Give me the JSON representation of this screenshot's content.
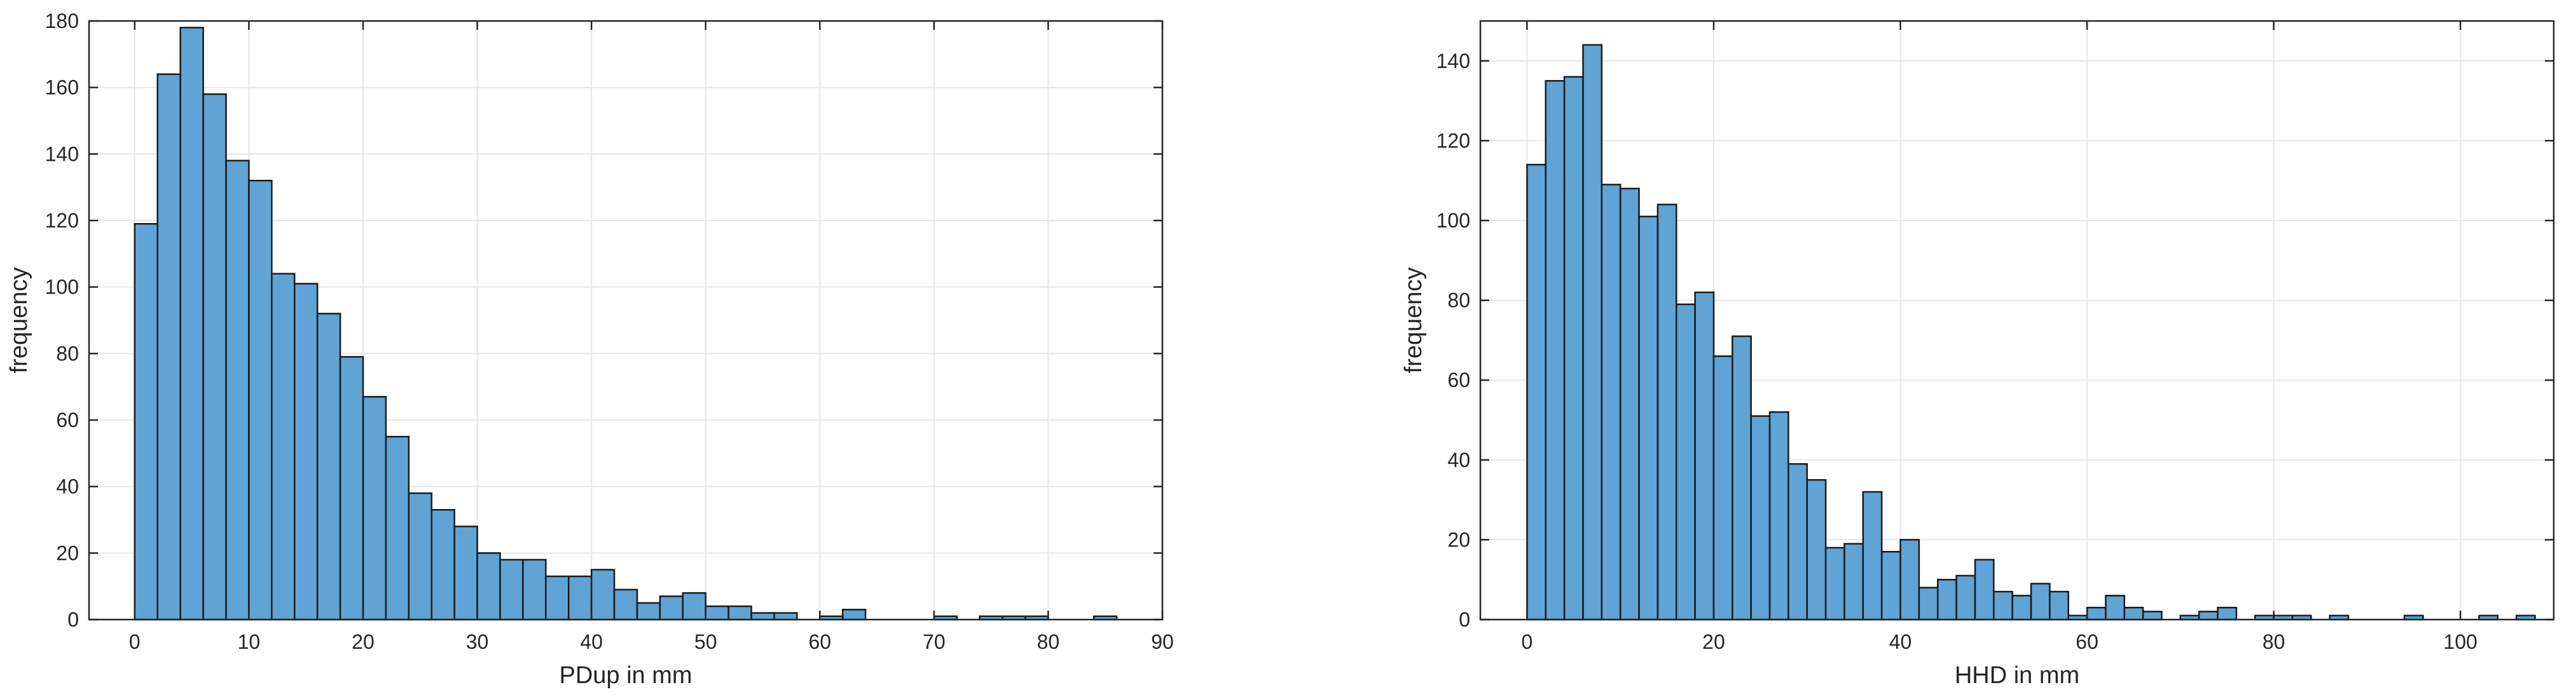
{
  "chart_data": [
    {
      "type": "bar",
      "xlabel": "PDup in mm",
      "ylabel": "frequency",
      "xlim": [
        -4,
        90
      ],
      "ylim": [
        0,
        180
      ],
      "xticks": [
        0,
        10,
        20,
        30,
        40,
        50,
        60,
        70,
        80,
        90
      ],
      "yticks": [
        0,
        20,
        40,
        60,
        80,
        100,
        120,
        140,
        160,
        180
      ],
      "grid": true,
      "bar_color": "#5fa4d4",
      "edge_color": "#1a1a1a",
      "bin_edges": [
        0,
        2,
        4,
        6,
        8,
        10,
        12,
        14,
        16,
        18,
        20,
        22,
        24,
        26,
        28,
        30,
        32,
        34,
        36,
        38,
        40,
        42,
        44,
        46,
        48,
        50,
        52,
        54,
        56,
        58,
        60,
        62,
        64,
        66,
        68,
        70,
        72,
        74,
        76,
        78,
        80,
        82,
        84,
        86
      ],
      "values": [
        119,
        164,
        178,
        158,
        138,
        132,
        104,
        101,
        92,
        79,
        67,
        55,
        38,
        33,
        28,
        20,
        18,
        18,
        13,
        13,
        15,
        9,
        5,
        7,
        8,
        4,
        4,
        2,
        2,
        0,
        1,
        3,
        0,
        0,
        0,
        1,
        0,
        1,
        1,
        1,
        0,
        0,
        1
      ]
    },
    {
      "type": "bar",
      "xlabel": "HHD in mm",
      "ylabel": "frequency",
      "xlim": [
        -5,
        110
      ],
      "ylim": [
        0,
        150
      ],
      "xticks": [
        0,
        20,
        40,
        60,
        80,
        100
      ],
      "yticks": [
        0,
        20,
        40,
        60,
        80,
        100,
        120,
        140
      ],
      "grid": true,
      "bar_color": "#5fa4d4",
      "edge_color": "#1a1a1a",
      "bin_edges": [
        0,
        2,
        4,
        6,
        8,
        10,
        12,
        14,
        16,
        18,
        20,
        22,
        24,
        26,
        28,
        30,
        32,
        34,
        36,
        38,
        40,
        42,
        44,
        46,
        48,
        50,
        52,
        54,
        56,
        58,
        60,
        62,
        64,
        66,
        68,
        70,
        72,
        74,
        76,
        78,
        80,
        82,
        84,
        86,
        88,
        90,
        92,
        94,
        96,
        98,
        100,
        102,
        104,
        106,
        108
      ],
      "values": [
        114,
        135,
        136,
        144,
        109,
        108,
        101,
        104,
        79,
        82,
        66,
        71,
        51,
        52,
        39,
        35,
        18,
        19,
        32,
        17,
        20,
        8,
        10,
        11,
        15,
        7,
        6,
        9,
        7,
        1,
        3,
        6,
        3,
        2,
        0,
        1,
        2,
        3,
        0,
        1,
        1,
        1,
        0,
        1,
        0,
        0,
        0,
        1,
        0,
        0,
        0,
        1,
        0,
        1
      ]
    }
  ]
}
